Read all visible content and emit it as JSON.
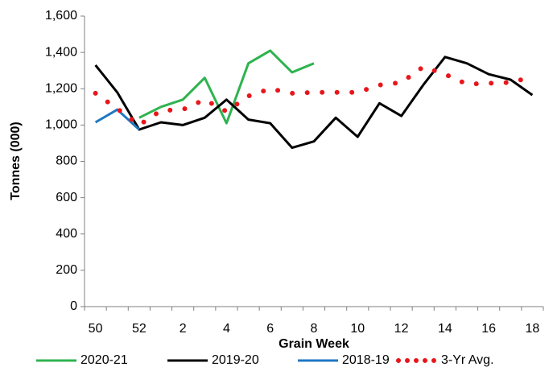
{
  "chart_data": {
    "type": "line",
    "ylabel": "Tonnes (000)",
    "xlabel": "Grain Week",
    "categories": [
      50,
      null,
      52,
      null,
      2,
      null,
      4,
      null,
      6,
      null,
      8,
      null,
      10,
      null,
      12,
      null,
      14,
      null,
      16,
      null,
      18
    ],
    "series": [
      {
        "name": "2020-21",
        "color": "#2eb34f",
        "style": "solid",
        "values": [
          null,
          null,
          1040,
          1100,
          1140,
          1260,
          1010,
          1340,
          1410,
          1290,
          1340,
          null,
          null,
          null,
          null,
          null,
          null,
          null,
          null,
          null,
          null
        ]
      },
      {
        "name": "2019-20",
        "color": "#000000",
        "style": "solid",
        "values": [
          1330,
          1180,
          975,
          1015,
          1000,
          1040,
          1140,
          1030,
          1010,
          875,
          910,
          1040,
          935,
          1120,
          1050,
          1220,
          1375,
          1340,
          1280,
          1250,
          1165
        ]
      },
      {
        "name": "2018-19",
        "color": "#1f77c4",
        "style": "solid",
        "values": [
          1015,
          1085,
          975,
          null,
          null,
          null,
          null,
          null,
          null,
          null,
          null,
          null,
          null,
          null,
          null,
          null,
          null,
          null,
          null,
          null,
          null
        ]
      },
      {
        "name": "3-Yr Avg.",
        "color": "#e8161b",
        "style": "dotted",
        "values": [
          1175,
          1090,
          1000,
          1080,
          1085,
          1140,
          1075,
          1160,
          1200,
          1175,
          1180,
          1180,
          1180,
          1220,
          1235,
          1320,
          1280,
          1225,
          1230,
          1235,
          1265
        ]
      }
    ],
    "ylim": [
      0,
      1600
    ],
    "yticks": [
      0,
      200,
      400,
      600,
      800,
      {
        "value": 1000,
        "label": "1,000"
      },
      {
        "value": 1200,
        "label": "1,200"
      },
      {
        "value": 1400,
        "label": "1,400"
      },
      {
        "value": 1600,
        "label": "1,600"
      }
    ],
    "grid": false,
    "legend": "bottom"
  }
}
